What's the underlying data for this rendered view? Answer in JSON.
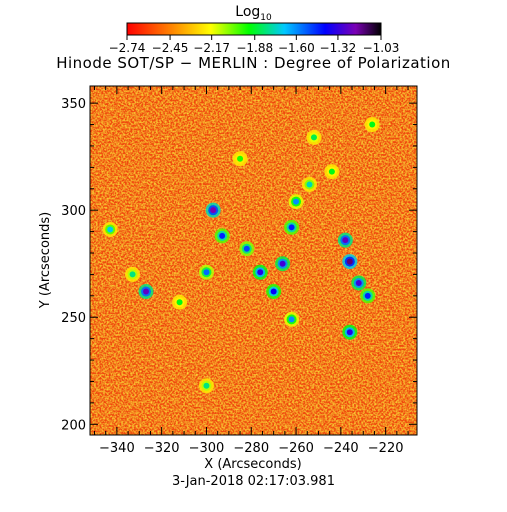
{
  "chart_data": {
    "type": "heatmap",
    "title": "Hinode SOT/SP − MERLIN : Degree of Polarization",
    "xlabel": "X (Arcseconds)",
    "ylabel": "Y (Arcseconds)",
    "xlim": [
      -352,
      -206
    ],
    "ylim": [
      195,
      358
    ],
    "x_ticks": [
      -340,
      -320,
      -300,
      -280,
      -260,
      -240,
      -220
    ],
    "y_ticks": [
      200,
      250,
      300,
      350
    ],
    "x_tick_labels": [
      "−340",
      "−320",
      "−300",
      "−280",
      "−260",
      "−240",
      "−220"
    ],
    "y_tick_labels": [
      "200",
      "250",
      "300",
      "350"
    ],
    "date": "3-Jan-2018 02:17:03.981",
    "colorbar": {
      "title": "Log",
      "title_subscript": "10",
      "min": -2.74,
      "max": -1.03,
      "tick_values": [
        -2.74,
        -2.45,
        -2.17,
        -1.88,
        -1.6,
        -1.32,
        -1.03
      ],
      "tick_labels": [
        "−2.74",
        "−2.45",
        "−2.17",
        "−1.88",
        "−1.60",
        "−1.32",
        "−1.03"
      ],
      "colormap": "rainbow-reversed (red low, black high)"
    },
    "background_value": -2.62,
    "features": [
      {
        "x": -297,
        "y": 300,
        "value": -1.2
      },
      {
        "x": -293,
        "y": 288,
        "value": -1.45
      },
      {
        "x": -282,
        "y": 282,
        "value": -1.5
      },
      {
        "x": -276,
        "y": 271,
        "value": -1.35
      },
      {
        "x": -270,
        "y": 262,
        "value": -1.4
      },
      {
        "x": -266,
        "y": 275,
        "value": -1.3
      },
      {
        "x": -262,
        "y": 292,
        "value": -1.45
      },
      {
        "x": -260,
        "y": 304,
        "value": -1.6
      },
      {
        "x": -254,
        "y": 312,
        "value": -1.75
      },
      {
        "x": -244,
        "y": 318,
        "value": -1.9
      },
      {
        "x": -238,
        "y": 286,
        "value": -1.25
      },
      {
        "x": -236,
        "y": 276,
        "value": -1.15
      },
      {
        "x": -232,
        "y": 266,
        "value": -1.3
      },
      {
        "x": -228,
        "y": 260,
        "value": -1.45
      },
      {
        "x": -236,
        "y": 243,
        "value": -1.35
      },
      {
        "x": -262,
        "y": 249,
        "value": -1.6
      },
      {
        "x": -327,
        "y": 262,
        "value": -1.25
      },
      {
        "x": -333,
        "y": 270,
        "value": -1.8
      },
      {
        "x": -343,
        "y": 291,
        "value": -1.7
      },
      {
        "x": -300,
        "y": 271,
        "value": -1.55
      },
      {
        "x": -252,
        "y": 334,
        "value": -1.85
      },
      {
        "x": -285,
        "y": 324,
        "value": -1.95
      },
      {
        "x": -300,
        "y": 218,
        "value": -1.8
      },
      {
        "x": -312,
        "y": 257,
        "value": -1.9
      },
      {
        "x": -226,
        "y": 340,
        "value": -1.9
      }
    ]
  }
}
